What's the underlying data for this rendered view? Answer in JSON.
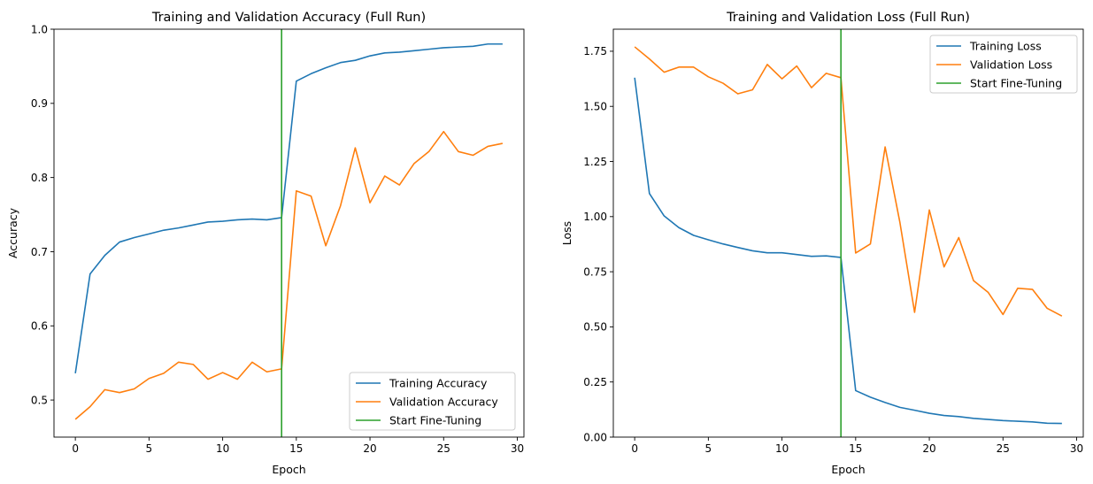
{
  "chart_data": [
    {
      "type": "line",
      "title": "Training and Validation Accuracy (Full Run)",
      "xlabel": "Epoch",
      "ylabel": "Accuracy",
      "xlim": [
        -1.45,
        30.45
      ],
      "ylim": [
        0.45,
        1.0
      ],
      "xticks": [
        0,
        5,
        10,
        15,
        20,
        25,
        30
      ],
      "yticks": [
        0.5,
        0.6,
        0.7,
        0.8,
        0.9,
        1.0
      ],
      "xtick_labels": [
        "0",
        "5",
        "10",
        "15",
        "20",
        "25",
        "30"
      ],
      "ytick_labels": [
        "0.5",
        "0.6",
        "0.7",
        "0.8",
        "0.9",
        "1.0"
      ],
      "grid": false,
      "legend_position": "lower-right",
      "x": [
        0,
        1,
        2,
        3,
        4,
        5,
        6,
        7,
        8,
        9,
        10,
        11,
        12,
        13,
        14,
        15,
        16,
        17,
        18,
        19,
        20,
        21,
        22,
        23,
        24,
        25,
        26,
        27,
        28,
        29
      ],
      "series": [
        {
          "name": "Training Accuracy",
          "color": "#1f77b4",
          "values": [
            0.536,
            0.67,
            0.695,
            0.713,
            0.719,
            0.724,
            0.729,
            0.732,
            0.736,
            0.74,
            0.741,
            0.743,
            0.744,
            0.743,
            0.746,
            0.93,
            0.94,
            0.948,
            0.955,
            0.958,
            0.964,
            0.968,
            0.969,
            0.971,
            0.973,
            0.975,
            0.976,
            0.977,
            0.98,
            0.98
          ]
        },
        {
          "name": "Validation Accuracy",
          "color": "#ff7f0e",
          "values": [
            0.474,
            0.491,
            0.514,
            0.51,
            0.515,
            0.529,
            0.536,
            0.551,
            0.548,
            0.528,
            0.537,
            0.528,
            0.551,
            0.538,
            0.542,
            0.782,
            0.775,
            0.708,
            0.762,
            0.84,
            0.766,
            0.802,
            0.79,
            0.819,
            0.835,
            0.862,
            0.835,
            0.83,
            0.842,
            0.846
          ]
        }
      ],
      "vline": {
        "name": "Start Fine-Tuning",
        "x": 14,
        "color": "#2ca02c"
      }
    },
    {
      "type": "line",
      "title": "Training and Validation Loss (Full Run)",
      "xlabel": "Epoch",
      "ylabel": "Loss",
      "xlim": [
        -1.45,
        30.45
      ],
      "ylim": [
        0.0,
        1.85
      ],
      "xticks": [
        0,
        5,
        10,
        15,
        20,
        25,
        30
      ],
      "yticks": [
        0.0,
        0.25,
        0.5,
        0.75,
        1.0,
        1.25,
        1.5,
        1.75
      ],
      "xtick_labels": [
        "0",
        "5",
        "10",
        "15",
        "20",
        "25",
        "30"
      ],
      "ytick_labels": [
        "0.00",
        "0.25",
        "0.50",
        "0.75",
        "1.00",
        "1.25",
        "1.50",
        "1.75"
      ],
      "grid": false,
      "legend_position": "upper-right",
      "x": [
        0,
        1,
        2,
        3,
        4,
        5,
        6,
        7,
        8,
        9,
        10,
        11,
        12,
        13,
        14,
        15,
        16,
        17,
        18,
        19,
        20,
        21,
        22,
        23,
        24,
        25,
        26,
        27,
        28,
        29
      ],
      "series": [
        {
          "name": "Training Loss",
          "color": "#1f77b4",
          "values": [
            1.63,
            1.105,
            1.003,
            0.95,
            0.915,
            0.895,
            0.876,
            0.86,
            0.845,
            0.836,
            0.836,
            0.828,
            0.82,
            0.822,
            0.815,
            0.211,
            0.181,
            0.157,
            0.135,
            0.122,
            0.108,
            0.098,
            0.093,
            0.085,
            0.08,
            0.075,
            0.072,
            0.069,
            0.063,
            0.062
          ]
        },
        {
          "name": "Validation Loss",
          "color": "#ff7f0e",
          "values": [
            1.77,
            1.715,
            1.655,
            1.678,
            1.678,
            1.634,
            1.605,
            1.557,
            1.575,
            1.69,
            1.625,
            1.683,
            1.585,
            1.65,
            1.63,
            0.835,
            0.876,
            1.316,
            0.975,
            0.566,
            1.03,
            0.772,
            0.905,
            0.71,
            0.656,
            0.556,
            0.675,
            0.67,
            0.584,
            0.549
          ]
        }
      ],
      "vline": {
        "name": "Start Fine-Tuning",
        "x": 14,
        "color": "#2ca02c"
      }
    }
  ]
}
